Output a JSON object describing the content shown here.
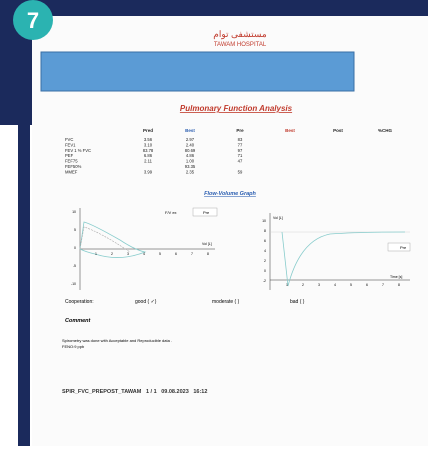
{
  "badge": "7",
  "header": {
    "logo_arabic": "مستشفى توام",
    "logo_english": "TAWAM HOSPITAL"
  },
  "report": {
    "title": "Pulmonary Function Analysis"
  },
  "table": {
    "headers": [
      "",
      "Pred",
      "Best",
      "Pre",
      "Best",
      "Post",
      "%CHG"
    ],
    "rows": [
      [
        "FVC",
        "3.56",
        "2.97",
        "83"
      ],
      [
        "FEV1",
        "3.10",
        "2.40",
        "77"
      ],
      [
        "FEV 1 % FVC",
        "83.78",
        "80.69",
        "97"
      ],
      [
        "PEF",
        "6.86",
        "4.86",
        "71"
      ],
      [
        "FEF75",
        "2.11",
        "1.00",
        "47"
      ],
      [
        "FEF50%",
        "",
        "93.35",
        ""
      ],
      [
        "MMEF",
        "3.99",
        "2.35",
        "59"
      ]
    ]
  },
  "graph": {
    "title": "Flow-Volume Graph",
    "left": {
      "legend_title": "F/V ex",
      "legend_item": "Pre",
      "x_label": "Vol [L]",
      "y_ticks": [
        "10",
        "5",
        "0",
        "-5",
        "-10"
      ],
      "x_ticks": [
        "1",
        "2",
        "3",
        "4",
        "5",
        "6",
        "7",
        "8"
      ]
    },
    "right": {
      "y_label": "Vol [L]",
      "legend_item": "Pre",
      "x_label": "Time [s]",
      "y_ticks": [
        "10",
        "8",
        "6",
        "4",
        "2",
        "0",
        "-2"
      ],
      "x_ticks": [
        "1",
        "2",
        "3",
        "4",
        "5",
        "6",
        "7",
        "8"
      ]
    }
  },
  "cooperation": {
    "label": "Cooperation:",
    "good": "good ( ✓)",
    "moderate": "moderate (  )",
    "bad": "bad (  )"
  },
  "comment": {
    "title": "Comment",
    "lines": [
      "Spirometry was done with Acceptable and Reproducible data .",
      "FENO:9  ppb"
    ]
  },
  "footer": "SPIR_FVC_PREPOST_TAWAM   1 / 1   09.08.2023   16:12"
}
